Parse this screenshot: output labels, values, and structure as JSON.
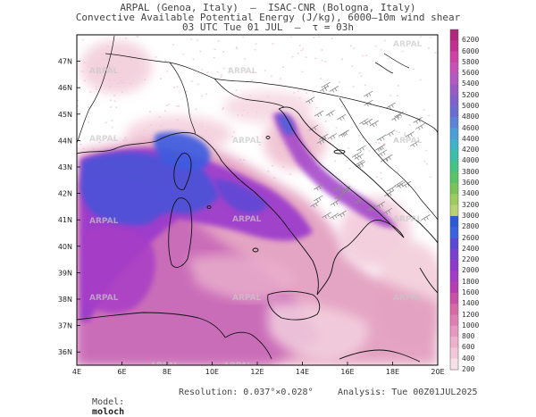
{
  "header": {
    "line1": "ARPAL (Genoa, Italy)  —  ISAC-CNR (Bologna, Italy)",
    "line2": "Convective Available Potential Energy (J/kg), 6000–10m wind shear",
    "line3": "03 UTC Tue 01 JUL  —  τ = 03h"
  },
  "map": {
    "lat_labels": [
      "47N",
      "46N",
      "45N",
      "44N",
      "43N",
      "42N",
      "41N",
      "40N",
      "39N",
      "38N",
      "37N",
      "36N"
    ],
    "lon_labels": [
      "4E",
      "6E",
      "8E",
      "10E",
      "12E",
      "14E",
      "16E",
      "18E",
      "20E"
    ],
    "watermark": "ARPAL",
    "lon_range": [
      4,
      20
    ],
    "lat_range": [
      35.5,
      48
    ]
  },
  "colorbar": {
    "levels": [
      "6200",
      "6000",
      "5800",
      "5600",
      "5400",
      "5200",
      "5000",
      "4800",
      "4600",
      "4400",
      "4200",
      "4000",
      "3800",
      "3600",
      "3400",
      "3200",
      "3000",
      "2800",
      "2600",
      "2400",
      "2200",
      "2000",
      "1800",
      "1600",
      "1400",
      "1200",
      "1000",
      "800",
      "600",
      "400",
      "200"
    ],
    "colors": [
      "#b0287e",
      "#c13090",
      "#d040a6",
      "#c850b8",
      "#b458c4",
      "#9a5ac8",
      "#8060cc",
      "#6a6cd2",
      "#5a84d8",
      "#4c9ed8",
      "#3eb2c8",
      "#3cbeaa",
      "#44c484",
      "#58c464",
      "#78c458",
      "#9ccc5c",
      "#b8d470",
      "#2a5ad4",
      "#3a62e0",
      "#5a48d6",
      "#7a3ed2",
      "#9038cc",
      "#a43ac8",
      "#b83cb4",
      "#c850a8",
      "#d868a8",
      "#e07eb4",
      "#e698c0",
      "#eeb0cc",
      "#f2c8d8",
      "#f8e0e8"
    ]
  },
  "footer": {
    "model_label": "Model:",
    "model_value": "moloch",
    "resolution": "Resolution: 0.037°×0.028°",
    "analysis": "Analysis: Tue 00Z01JUL2025"
  }
}
